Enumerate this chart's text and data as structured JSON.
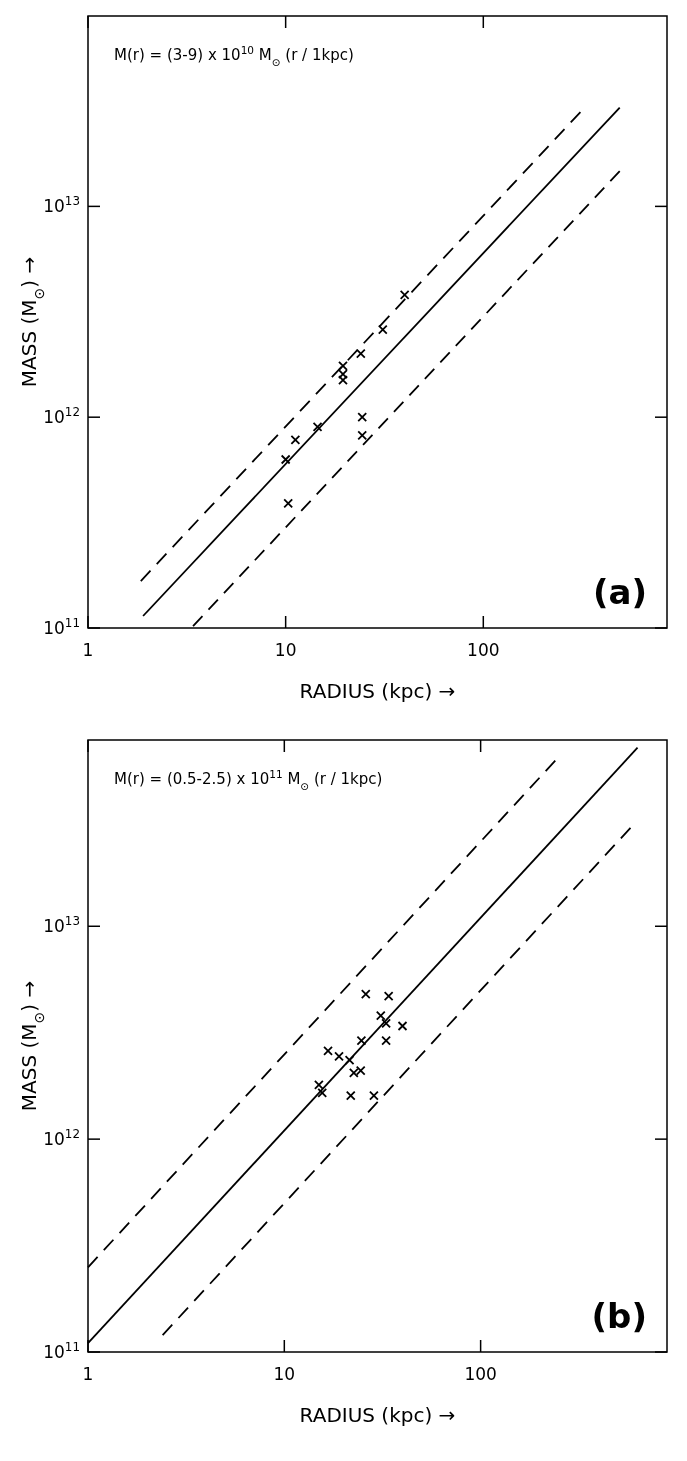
{
  "chart_data": [
    {
      "type": "scatter",
      "xlabel": "RADIUS (kpc) →",
      "ylabel": "MASS (M$_{⊙}$) →",
      "log": "xy",
      "marker": "cross",
      "xlim": [
        1,
        850
      ],
      "ylim": [
        100000000000.0,
        80000000000000.0
      ],
      "xticks": [
        1,
        10,
        100
      ],
      "yticks": [
        {
          "value": 100000000000.0,
          "label": "10$^{11}$"
        },
        {
          "value": 1000000000000.0,
          "label": "10$^{12}$"
        },
        {
          "value": 10000000000000.0,
          "label": "10$^{13}$"
        }
      ],
      "annotations": [
        "M(r) = (3-9) x 10$^{10}$ M$_{⊙}$ (r / 1kpc)",
        "(a)"
      ],
      "series": [
        {
          "color": "#000000",
          "x": [
            10,
            11.2,
            14.5,
            19.5,
            19.5,
            19.5,
            24,
            31,
            40,
            24.4,
            24.4,
            10.3
          ],
          "values": [
            630000000000.0,
            780000000000.0,
            900000000000.0,
            1600000000000.0,
            1750000000000.0,
            1500000000000.0,
            2000000000000.0,
            2600000000000.0,
            3800000000000.0,
            1000000000000.0,
            820000000000.0,
            390000000000.0
          ]
        },
        {
          "type": "line",
          "marker": "none",
          "color": "#000000",
          "line_style": "solid",
          "x": [
            1.9,
            490
          ],
          "values": [
            114000000000.0,
            29400000000000.0
          ]
        },
        {
          "type": "line",
          "marker": "none",
          "color": "#000000",
          "line_style": "dashed",
          "x": [
            1.85,
            310
          ],
          "values": [
            167000000000.0,
            28000000000000.0
          ]
        },
        {
          "type": "line",
          "marker": "none",
          "color": "#000000",
          "line_style": "dashed",
          "x": [
            3.4,
            490
          ],
          "values": [
            102000000000.0,
            14700000000000.0
          ]
        }
      ]
    },
    {
      "type": "scatter",
      "xlabel": "RADIUS (kpc) →",
      "ylabel": "MASS (M$_{⊙}$) →",
      "log": "xy",
      "marker": "cross",
      "xlim": [
        1,
        890
      ],
      "ylim": [
        100000000000.0,
        75000000000000.0
      ],
      "xticks": [
        1,
        10,
        100
      ],
      "yticks": [
        {
          "value": 100000000000.0,
          "label": "10$^{11}$"
        },
        {
          "value": 1000000000000.0,
          "label": "10$^{12}$"
        },
        {
          "value": 10000000000000.0,
          "label": "10$^{13}$"
        }
      ],
      "annotations": [
        "M(r) = (0.5-2.5) x 10$^{11}$ M$_{⊙}$ (r / 1kpc)",
        "(b)"
      ],
      "series": [
        {
          "color": "#000000",
          "x": [
            26,
            34,
            31,
            33,
            40,
            33,
            24.7,
            16.7,
            19,
            21.5,
            22.6,
            24.5,
            15,
            15.6,
            21.8,
            28.6
          ],
          "values": [
            4800000000000.0,
            4700000000000.0,
            3800000000000.0,
            3500000000000.0,
            3400000000000.0,
            2900000000000.0,
            2900000000000.0,
            2600000000000.0,
            2450000000000.0,
            2350000000000.0,
            2050000000000.0,
            2100000000000.0,
            1800000000000.0,
            1650000000000.0,
            1600000000000.0,
            1600000000000.0
          ]
        },
        {
          "type": "line",
          "marker": "none",
          "color": "#000000",
          "line_style": "solid",
          "x": [
            1,
            630
          ],
          "values": [
            110000000000.0,
            69000000000000.0
          ]
        },
        {
          "type": "line",
          "marker": "none",
          "color": "#000000",
          "line_style": "dashed",
          "x": [
            1,
            240
          ],
          "values": [
            250000000000.0,
            60000000000000.0
          ]
        },
        {
          "type": "line",
          "marker": "none",
          "color": "#000000",
          "line_style": "dashed",
          "x": [
            2.4,
            580
          ],
          "values": [
            120000000000.0,
            29000000000000.0
          ]
        }
      ]
    }
  ]
}
